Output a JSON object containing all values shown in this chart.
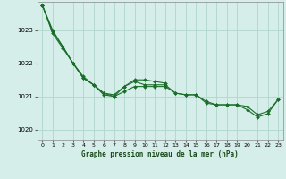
{
  "bg_color": "#d6eeea",
  "grid_color": "#b4d8d0",
  "line_color": "#1a6e2a",
  "marker_color": "#1a6e2a",
  "xlabel": "Graphe pression niveau de la mer (hPa)",
  "ylim_min": 1019.7,
  "ylim_max": 1023.85,
  "yticks": [
    1020,
    1021,
    1022,
    1023
  ],
  "xticks": [
    0,
    1,
    2,
    3,
    4,
    5,
    6,
    7,
    8,
    9,
    10,
    11,
    12,
    13,
    14,
    15,
    16,
    17,
    18,
    19,
    20,
    21,
    22,
    23
  ],
  "series1_x": [
    0,
    1,
    2,
    3,
    4,
    5,
    6,
    7,
    8,
    9,
    10,
    11,
    12,
    13,
    14,
    15,
    16,
    17,
    18,
    19,
    20,
    21,
    22,
    23
  ],
  "series1_y": [
    1023.75,
    1023.0,
    1022.5,
    1022.0,
    1021.55,
    1021.35,
    1021.05,
    1021.0,
    1021.15,
    1021.3,
    1021.3,
    1021.3,
    1021.3,
    1021.1,
    1021.05,
    1021.05,
    1020.85,
    1020.75,
    1020.75,
    1020.75,
    1020.7,
    1020.45,
    1020.55,
    1020.9
  ],
  "series2_x": [
    0,
    1,
    2,
    3,
    4,
    5,
    6,
    7,
    8,
    9,
    10,
    11,
    12,
    13,
    14,
    15,
    16,
    17,
    18,
    19,
    20,
    21,
    22,
    23
  ],
  "series2_y": [
    1023.75,
    1022.9,
    1022.45,
    1022.0,
    1021.55,
    1021.35,
    1021.1,
    1021.05,
    1021.3,
    1021.45,
    1021.35,
    1021.35,
    1021.35,
    1021.1,
    1021.05,
    1021.05,
    1020.8,
    1020.75,
    1020.75,
    1020.75,
    1020.6,
    1020.38,
    1020.48,
    1020.9
  ],
  "series3_x": [
    0,
    1,
    2,
    3,
    4,
    5,
    6,
    7,
    8,
    9,
    10,
    11,
    12
  ],
  "series3_y": [
    1023.75,
    1022.95,
    1022.5,
    1022.0,
    1021.6,
    1021.35,
    1021.1,
    1021.0,
    1021.3,
    1021.5,
    1021.5,
    1021.45,
    1021.4
  ]
}
